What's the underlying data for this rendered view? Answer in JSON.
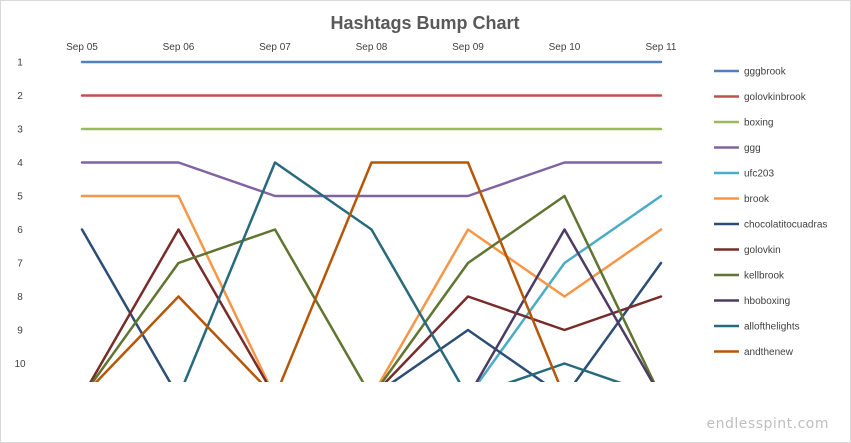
{
  "chart_data": {
    "type": "line",
    "title": "Hashtags Bump Chart",
    "xlabel": "",
    "ylabel": "",
    "x": [
      "Sep 05",
      "Sep 06",
      "Sep 07",
      "Sep 08",
      "Sep 09",
      "Sep 10",
      "Sep 11"
    ],
    "yticks": [
      1,
      2,
      3,
      4,
      5,
      6,
      7,
      8,
      9,
      10
    ],
    "ylim": [
      1,
      10.6
    ],
    "y_reversed": true,
    "grid": false,
    "legend_position": "right",
    "series": [
      {
        "name": "gggbrook",
        "color": "#4F81BD",
        "values": [
          1,
          1,
          1,
          1,
          1,
          1,
          1
        ]
      },
      {
        "name": "golovkinbrook",
        "color": "#C0504D",
        "values": [
          2,
          2,
          2,
          2,
          2,
          2,
          2
        ]
      },
      {
        "name": "boxing",
        "color": "#9BBB59",
        "values": [
          3,
          3,
          3,
          3,
          3,
          3,
          3
        ]
      },
      {
        "name": "ggg",
        "color": "#8064A2",
        "values": [
          4,
          4,
          5,
          5,
          5,
          4,
          4
        ]
      },
      {
        "name": "ufc203",
        "color": "#4BACC6",
        "values": [
          null,
          null,
          null,
          null,
          11,
          7,
          5
        ]
      },
      {
        "name": "brook",
        "color": "#F79646",
        "values": [
          5,
          5,
          11,
          11,
          6,
          8,
          6
        ]
      },
      {
        "name": "chocolatitocuadras",
        "color": "#2C4D75",
        "values": [
          6,
          11,
          null,
          11,
          9,
          11,
          7
        ]
      },
      {
        "name": "golovkin",
        "color": "#772C2A",
        "values": [
          11,
          6,
          11,
          11,
          8,
          9,
          8
        ]
      },
      {
        "name": "kellbrook",
        "color": "#5F7530",
        "values": [
          11,
          7,
          6,
          11,
          7,
          5,
          11
        ]
      },
      {
        "name": "hboboxing",
        "color": "#4D3B62",
        "values": [
          null,
          null,
          null,
          null,
          11,
          6,
          11
        ]
      },
      {
        "name": "allofthelights",
        "color": "#276A7C",
        "values": [
          null,
          11,
          4,
          6,
          11,
          10,
          11
        ]
      },
      {
        "name": "andthenew",
        "color": "#B65708",
        "values": [
          11,
          8,
          11,
          4,
          4,
          11,
          null
        ]
      }
    ]
  },
  "watermark": "endlesspint.com"
}
